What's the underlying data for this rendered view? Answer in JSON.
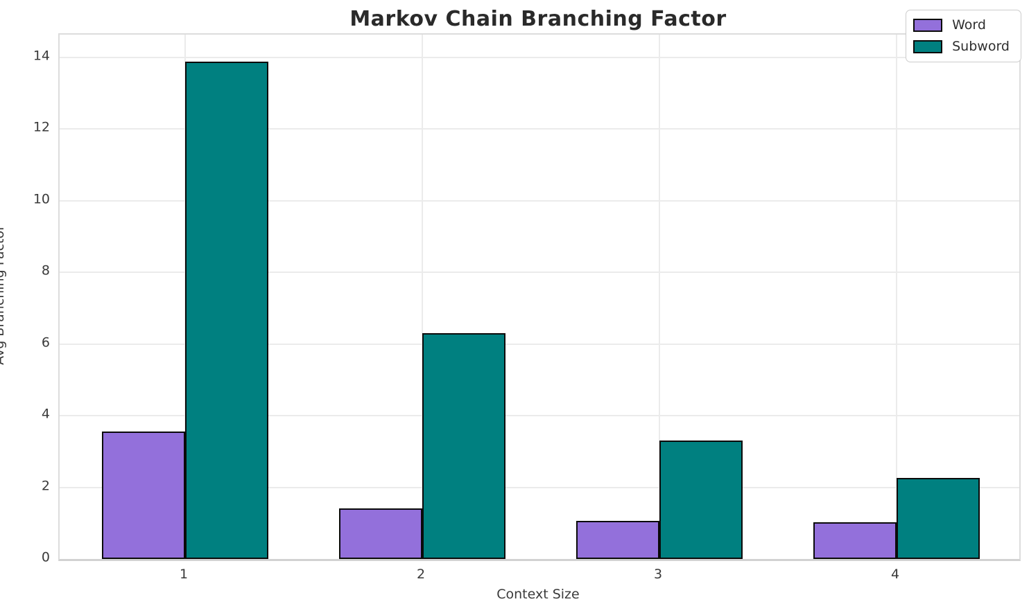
{
  "title": "Markov Chain Branching Factor",
  "chart_data": {
    "type": "bar",
    "categories": [
      "1",
      "2",
      "3",
      "4"
    ],
    "series": [
      {
        "name": "Word",
        "color": "#9370DB",
        "values": [
          3.56,
          1.41,
          1.07,
          1.02
        ]
      },
      {
        "name": "Subword",
        "color": "#008080",
        "values": [
          13.88,
          6.3,
          3.31,
          2.27
        ]
      }
    ],
    "title": "Markov Chain Branching Factor",
    "xlabel": "Context Size",
    "ylabel": "Avg Branching Factor",
    "ylim": [
      0,
      14.63
    ],
    "yticks": [
      0,
      2,
      4,
      6,
      8,
      10,
      12,
      14
    ],
    "grid": true,
    "bar_edge_color": "#0a0a0a",
    "legend": {
      "position": "upper right",
      "entries": [
        "Word",
        "Subword"
      ]
    }
  }
}
